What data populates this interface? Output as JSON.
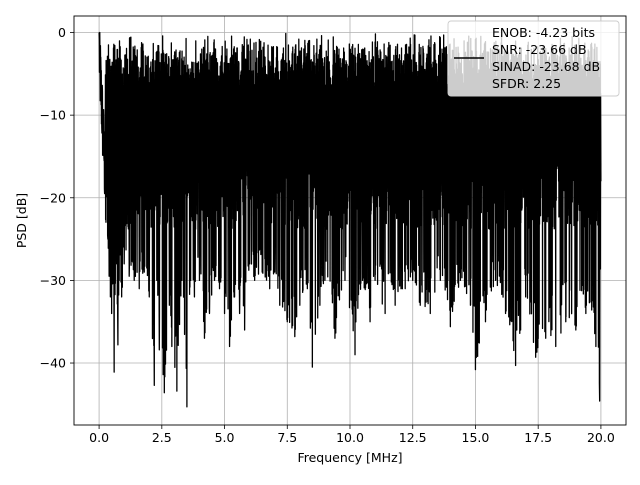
{
  "chart_data": {
    "type": "line",
    "title": "",
    "xlabel": "Frequency [MHz]",
    "ylabel": "PSD [dB]",
    "xlim": [
      -1.0,
      21.0
    ],
    "ylim": [
      -47.5,
      2.0
    ],
    "xticks": [
      0.0,
      2.5,
      5.0,
      7.5,
      10.0,
      12.5,
      15.0,
      17.5,
      20.0
    ],
    "xtick_labels": [
      "0.0",
      "2.5",
      "5.0",
      "7.5",
      "10.0",
      "12.5",
      "15.0",
      "17.5",
      "20.0"
    ],
    "yticks": [
      0,
      -10,
      -20,
      -30,
      -40
    ],
    "ytick_labels": [
      "0",
      "−10",
      "−20",
      "−30",
      "−40"
    ],
    "grid": true,
    "legend_position": "top-right",
    "legend_lines": [
      "ENOB: -4.23 bits",
      "SNR: -23.66 dB",
      "SINAD: -23.68 dB",
      "SFDR: 2.25"
    ],
    "series_color": "#000000",
    "series": [
      {
        "x": [
          0.0,
          0.02,
          0.05,
          0.08,
          0.1,
          0.15,
          0.2,
          0.25,
          0.3,
          0.35,
          0.4,
          0.45,
          0.5,
          0.55,
          0.6,
          0.7,
          0.75,
          0.8,
          0.9,
          1.0,
          1.2,
          1.4,
          1.6,
          1.8,
          2.0,
          2.2,
          2.3,
          2.4,
          2.6,
          2.8,
          2.9,
          3.1,
          3.3,
          3.5,
          3.65,
          3.8,
          4.0,
          4.2,
          4.4,
          4.6,
          4.8,
          5.0,
          5.2,
          5.4,
          5.6,
          5.8,
          6.0,
          6.2,
          6.5,
          6.8,
          7.0,
          7.2,
          7.5,
          7.8,
          8.0,
          8.3,
          8.5,
          8.8,
          9.0,
          9.4,
          9.8,
          10.2,
          10.5,
          10.8,
          11.0,
          11.4,
          11.8,
          12.2,
          12.5,
          12.8,
          13.2,
          13.6,
          14.0,
          14.4,
          14.8,
          15.0,
          15.4,
          15.8,
          16.2,
          16.6,
          16.8,
          17.0,
          17.4,
          17.8,
          18.2,
          18.6,
          19.0,
          19.4,
          19.8,
          19.95,
          20.0
        ],
        "y": [
          0.0,
          -2.0,
          -9.0,
          -17.0,
          -21.0,
          -20.5,
          -24.0,
          -22.0,
          -28.6,
          -25.0,
          -29.5,
          -32.0,
          -34.0,
          -30.0,
          -41.1,
          -28.0,
          -37.8,
          -30.0,
          -32.0,
          -28.0,
          -29.5,
          -30.0,
          -31.0,
          -29.0,
          -32.0,
          -42.7,
          -30.0,
          -38.4,
          -43.6,
          -33.0,
          -38.0,
          -43.4,
          -30.0,
          -45.3,
          -30.0,
          -32.0,
          -30.0,
          -37.0,
          -34.0,
          -30.0,
          -31.0,
          -34.0,
          -38.0,
          -32.0,
          -34.0,
          -36.0,
          -28.0,
          -30.0,
          -29.0,
          -31.0,
          -29.0,
          -33.0,
          -35.0,
          -36.8,
          -33.0,
          -31.0,
          -40.5,
          -33.0,
          -30.0,
          -37.0,
          -30.0,
          -39.0,
          -30.0,
          -35.0,
          -30.0,
          -34.0,
          -33.0,
          -31.0,
          -30.0,
          -33.0,
          -34.0,
          -30.0,
          -35.6,
          -30.0,
          -33.0,
          -40.8,
          -35.0,
          -30.0,
          -34.0,
          -40.3,
          -36.0,
          -32.0,
          -39.3,
          -37.0,
          -38.0,
          -35.0,
          -36.0,
          -34.0,
          -38.0,
          -44.6,
          -18.0
        ]
      }
    ]
  }
}
